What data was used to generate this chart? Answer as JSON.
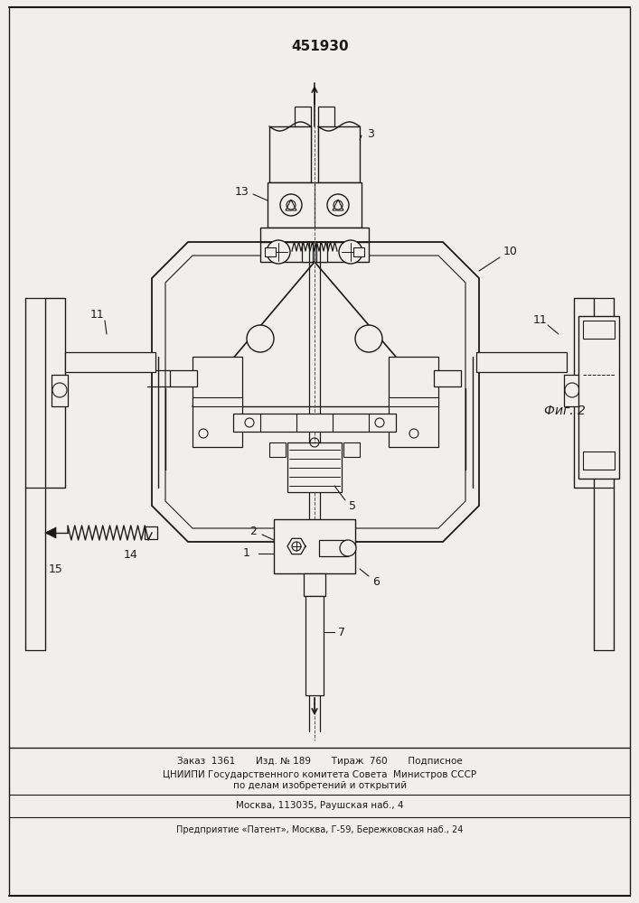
{
  "patent_number": "451930",
  "fig_label": "Фиг. 2",
  "footer_line1": "Заказ  1361       Изд. № 189       Тираж  760       Подписное",
  "footer_line2": "ЦНИИПИ Государственного комитета Совета  Министров СССР",
  "footer_line3": "по делам изобретений и открытий",
  "footer_line4": "Москва, 113035, Раушская наб., 4",
  "footer_line5": "Предприятие «Патент», Москва, Г-59, Бережковская наб., 24",
  "bg_color": "#f0efeb",
  "line_color": "#1a1a1a",
  "label_color": "#1a1a1a"
}
